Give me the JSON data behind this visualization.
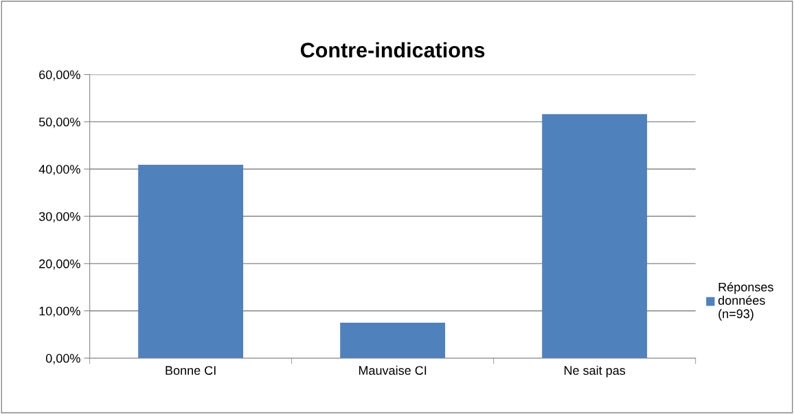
{
  "chart_data": {
    "type": "bar",
    "title": "Contre-indications",
    "categories": [
      "Bonne CI",
      "Mauvaise CI",
      "Ne sait pas"
    ],
    "series": [
      {
        "name": "Réponses données (n=93)",
        "color": "#4f81bd",
        "values": [
          40.9,
          7.5,
          51.6
        ]
      }
    ],
    "ylim": [
      0,
      60
    ],
    "yticks": [
      {
        "value": 0,
        "label": "0,00%"
      },
      {
        "value": 10,
        "label": "10,00%"
      },
      {
        "value": 20,
        "label": "20,00%"
      },
      {
        "value": 30,
        "label": "30,00%"
      },
      {
        "value": 40,
        "label": "40,00%"
      },
      {
        "value": 50,
        "label": "50,00%"
      },
      {
        "value": 60,
        "label": "60,00%"
      }
    ],
    "grid": "y",
    "legend": "right"
  }
}
